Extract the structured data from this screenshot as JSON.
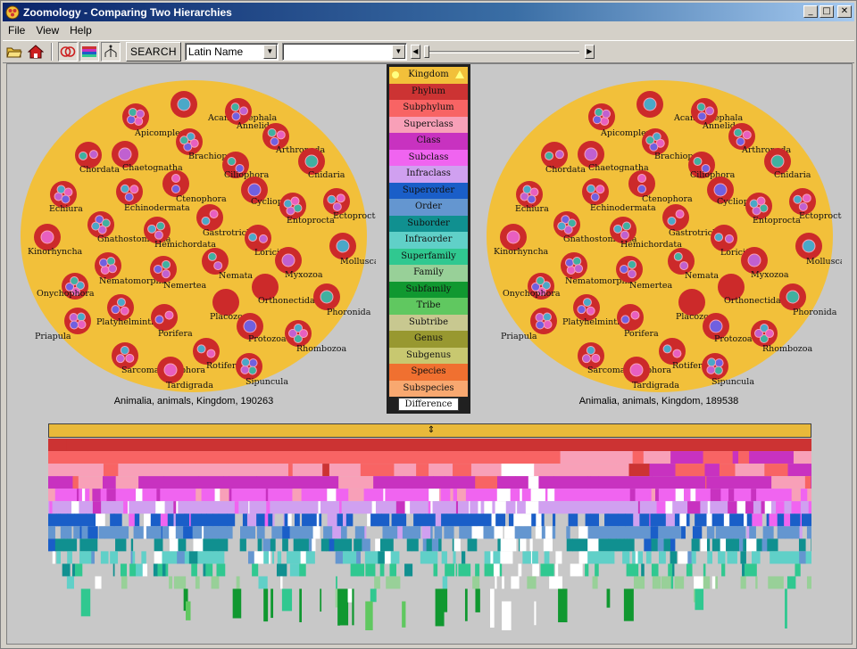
{
  "window": {
    "title": "Zoomology - Comparing Two Hierarchies",
    "controls": [
      "_",
      "□",
      "✕"
    ]
  },
  "menu": [
    "File",
    "View",
    "Help"
  ],
  "toolbar": {
    "search_label": "SEARCH",
    "field_select": "Latin Name",
    "term_select": ""
  },
  "left_view": {
    "caption": "Animalia, animals, Kingdom, 190263",
    "phyla": [
      "Acanthocephala",
      "Apicomplexa",
      "Annelida",
      "Chordata",
      "Chaetognatha",
      "Brachiopoda",
      "Arthropoda",
      "Ciliophora",
      "Cnidaria",
      "Echiura",
      "Echinodermata",
      "Ctenophora",
      "Cycliophora",
      "Entoprocta",
      "Ectoprocta",
      "Gastrotricha",
      "Kinorhyncha",
      "Gnathostomulida",
      "Hemichordata",
      "Loricifera",
      "Mollusca",
      "Nematomorpha",
      "Nemertea",
      "Nemata",
      "Myxozoa",
      "Onychophora",
      "Orthonectida",
      "Placozoa",
      "Phoronida",
      "Priapula",
      "Platyhelminthes",
      "Porifera",
      "Protozoa",
      "Rhombozoa",
      "Sarcomastigophora",
      "Rotifera",
      "Tardigrada",
      "Sipuncula"
    ]
  },
  "right_view": {
    "caption": "Animalia, animals, Kingdom, 189538"
  },
  "legend": {
    "levels": [
      {
        "label": "Kingdom",
        "color": "#f2c03a"
      },
      {
        "label": "Phylum",
        "color": "#cc3333"
      },
      {
        "label": "Subphylum",
        "color": "#f86464"
      },
      {
        "label": "Superclass",
        "color": "#f8a0b8"
      },
      {
        "label": "Class",
        "color": "#c832c0"
      },
      {
        "label": "Subclass",
        "color": "#f064f0"
      },
      {
        "label": "Infraclass",
        "color": "#d0a0f0"
      },
      {
        "label": "Superorder",
        "color": "#1a5ec8"
      },
      {
        "label": "Order",
        "color": "#6496d0"
      },
      {
        "label": "Suborder",
        "color": "#109090"
      },
      {
        "label": "Infraorder",
        "color": "#60d0c8"
      },
      {
        "label": "Superfamily",
        "color": "#30c890"
      },
      {
        "label": "Family",
        "color": "#98d098"
      },
      {
        "label": "Subfamily",
        "color": "#109830"
      },
      {
        "label": "Tribe",
        "color": "#60c860"
      },
      {
        "label": "Subtribe",
        "color": "#c8c890"
      },
      {
        "label": "Genus",
        "color": "#989830"
      },
      {
        "label": "Subgenus",
        "color": "#c8c870"
      },
      {
        "label": "Species",
        "color": "#f07030"
      },
      {
        "label": "Subspecies",
        "color": "#f8a870"
      }
    ],
    "difference_label": "Difference"
  }
}
